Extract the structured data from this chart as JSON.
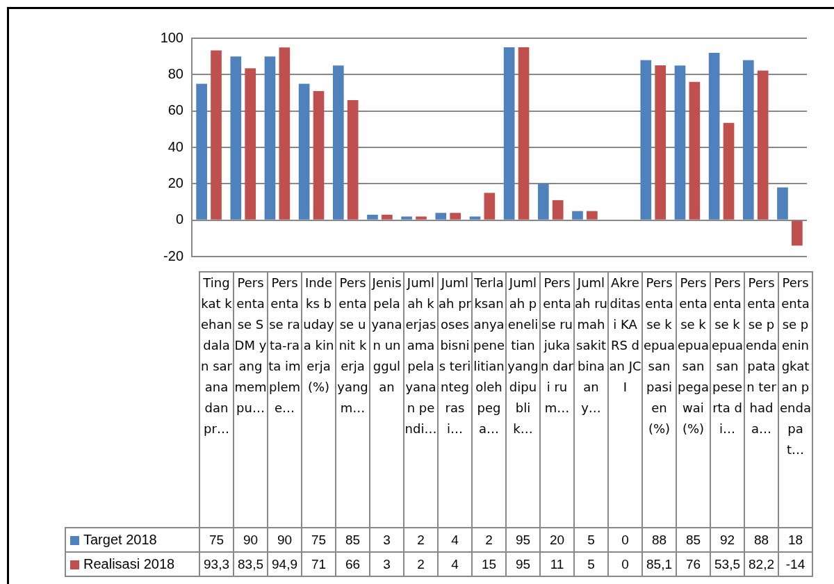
{
  "chart_data": {
    "type": "bar",
    "categories": [
      "Tingkat kehandalan sarana dan pr…",
      "Persentase SDM yang mempu…",
      "Persentase rata-rata impleme…",
      "Indeks budaya kinerja (%)",
      "Persentase unit kerja yang m…",
      "Jenis pelayanan unggulan",
      "Jumlah kerjasama pelayanan pendi…",
      "Jumlah proses bisnis terintegrasi…",
      "Terlaksananya penelitian oleh pega…",
      "Jumlah penelitian yang dipublik…",
      "Persentase rujukan dari rum…",
      "Jumlah rumah sakit binaan y…",
      "Akreditasi KARS dan JCI",
      "Persentase kepuasan pasien (%)",
      "Persentase kepuasan pegawai (%)",
      "Persentase kepuasan peserta di…",
      "Persentase pendapatan terhada…",
      "Persentase peningkatan pendapat…"
    ],
    "series": [
      {
        "name": "Target 2018",
        "color": "#4f81bd",
        "values": [
          75,
          90,
          90,
          75,
          85,
          3,
          2,
          4,
          2,
          95,
          20,
          5,
          0,
          88,
          85,
          92,
          88,
          18
        ],
        "value_labels": [
          "75",
          "90",
          "90",
          "75",
          "85",
          "3",
          "2",
          "4",
          "2",
          "95",
          "20",
          "5",
          "0",
          "88",
          "85",
          "92",
          "88",
          "18"
        ]
      },
      {
        "name": "Realisasi 2018",
        "color": "#c0504d",
        "values": [
          93.3,
          83.5,
          94.9,
          71,
          66,
          3,
          2,
          4,
          15,
          95,
          11,
          5,
          0,
          85.1,
          76,
          53.5,
          82.2,
          -14
        ],
        "value_labels": [
          "93,3",
          "83,5",
          "94,9",
          "71",
          "66",
          "3",
          "2",
          "4",
          "15",
          "95",
          "11",
          "5",
          "0",
          "85,1",
          "76",
          "53,5",
          "82,2",
          "-14"
        ]
      }
    ],
    "ylim": [
      -20,
      100
    ],
    "yticks": [
      -20,
      0,
      20,
      40,
      60,
      80,
      100
    ],
    "grid": "y",
    "legend": "bottom"
  }
}
